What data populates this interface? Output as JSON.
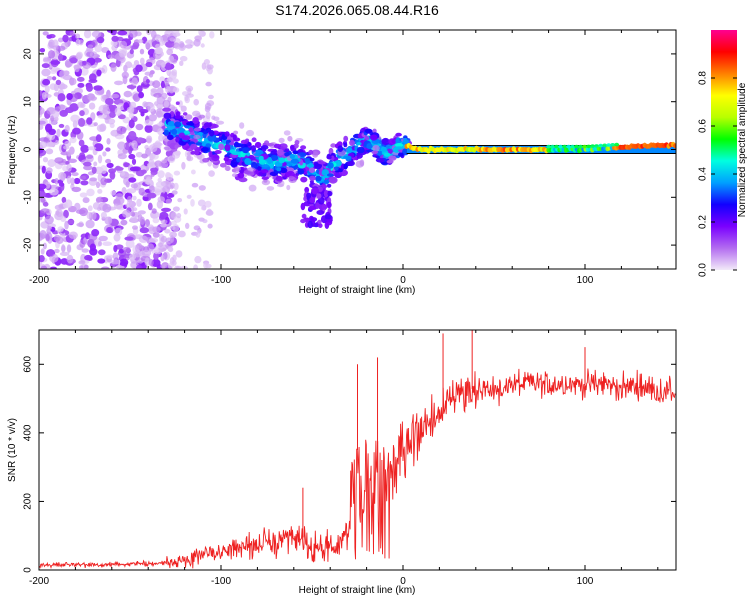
{
  "chart_data": [
    {
      "type": "heatmap",
      "title": "S174.2026.065.08.44.R16",
      "xlabel": "Height of straight line (km)",
      "ylabel": "Frequency (Hz)",
      "xlim": [
        -200,
        150
      ],
      "ylim": [
        -25,
        25
      ],
      "xticks": [
        -200,
        -100,
        0,
        100
      ],
      "xtick_labels": [
        "-200",
        "-100",
        "0",
        "100"
      ],
      "yticks": [
        -20,
        -10,
        0,
        10,
        20
      ],
      "ytick_labels": [
        "-20",
        "-10",
        "0",
        "10",
        "20"
      ],
      "grid": false,
      "ridge_description": "Scattered noise below -130 km; signal converges to ~0 Hz from about -130 km; strong stable line at ~0 Hz from 0 km to 150 km",
      "ridge": {
        "x": [
          -130,
          -120,
          -110,
          -100,
          -90,
          -80,
          -70,
          -60,
          -50,
          -45,
          -40,
          -35,
          -30,
          -25,
          -20,
          -15,
          -10,
          -5,
          0,
          10,
          20,
          40,
          60,
          80,
          100,
          120,
          150
        ],
        "y": [
          5,
          4,
          2,
          1,
          -1,
          -2,
          -3,
          -2,
          -4,
          -6,
          -4,
          -2,
          -1,
          1,
          2,
          1,
          -1,
          0,
          1,
          0,
          0,
          0,
          0,
          0,
          0,
          0.5,
          1
        ]
      },
      "colorbar": {
        "label": "Normalized spectral amplitude",
        "ticks": [
          0.0,
          0.2,
          0.4,
          0.6,
          0.8
        ],
        "tick_labels": [
          "0.0",
          "0.2",
          "0.4",
          "0.6",
          "0.8"
        ],
        "range": [
          0,
          1
        ],
        "colors": [
          "#f2eaf8",
          "#b36cf0",
          "#7a00ff",
          "#1200ff",
          "#00a0ff",
          "#00ffe0",
          "#00ff00",
          "#b8ff00",
          "#ffff00",
          "#ff8000",
          "#ff0000",
          "#ff0090"
        ]
      }
    },
    {
      "type": "line",
      "xlabel": "Height of straight line (km)",
      "ylabel": "SNR (10 * v/v)",
      "xlim": [
        -200,
        150
      ],
      "ylim": [
        0,
        700
      ],
      "xticks": [
        -200,
        -100,
        0,
        100
      ],
      "xtick_labels": [
        "-200",
        "-100",
        "0",
        "100"
      ],
      "yticks": [
        0,
        200,
        400,
        600
      ],
      "ytick_labels": [
        "0",
        "200",
        "400",
        "600"
      ],
      "grid": false,
      "line_color": "#ee2222",
      "series": [
        {
          "name": "SNR",
          "x": [
            -200,
            -180,
            -160,
            -140,
            -120,
            -110,
            -100,
            -90,
            -80,
            -70,
            -60,
            -55,
            -50,
            -40,
            -30,
            -28,
            -25,
            -22,
            -20,
            -18,
            -15,
            -12,
            -10,
            -8,
            -5,
            0,
            5,
            10,
            15,
            20,
            25,
            30,
            40,
            50,
            60,
            70,
            80,
            90,
            100,
            110,
            120,
            130,
            140,
            150
          ],
          "values": [
            15,
            15,
            15,
            18,
            25,
            45,
            55,
            65,
            75,
            80,
            85,
            95,
            60,
            60,
            95,
            250,
            350,
            160,
            400,
            180,
            330,
            200,
            300,
            260,
            310,
            330,
            380,
            400,
            430,
            460,
            500,
            520,
            530,
            520,
            540,
            545,
            540,
            545,
            540,
            545,
            530,
            540,
            520,
            520
          ],
          "peaks": [
            {
              "x": -55,
              "value": 240
            },
            {
              "x": -25,
              "value": 600
            },
            {
              "x": -14,
              "value": 620
            },
            {
              "x": 22,
              "value": 690
            },
            {
              "x": 38,
              "value": 700
            },
            {
              "x": 100,
              "value": 650
            }
          ]
        }
      ]
    }
  ]
}
